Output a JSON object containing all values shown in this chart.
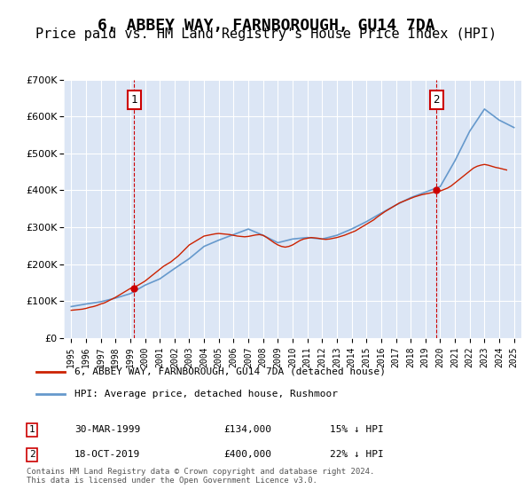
{
  "title": "6, ABBEY WAY, FARNBOROUGH, GU14 7DA",
  "subtitle": "Price paid vs. HM Land Registry's House Price Index (HPI)",
  "ylabel": "",
  "background_color": "#f0f4fa",
  "plot_bg_color": "#dce6f5",
  "title_fontsize": 13,
  "subtitle_fontsize": 11,
  "legend_line1": "6, ABBEY WAY, FARNBOROUGH, GU14 7DA (detached house)",
  "legend_line2": "HPI: Average price, detached house, Rushmoor",
  "footer": "Contains HM Land Registry data © Crown copyright and database right 2024.\nThis data is licensed under the Open Government Licence v3.0.",
  "marker1_label": "1",
  "marker1_date": "30-MAR-1999",
  "marker1_price": "£134,000",
  "marker1_hpi": "15% ↓ HPI",
  "marker2_label": "2",
  "marker2_date": "18-OCT-2019",
  "marker2_price": "£400,000",
  "marker2_hpi": "22% ↓ HPI",
  "hpi_color": "#6699cc",
  "price_color": "#cc2200",
  "marker_color": "#cc0000",
  "vline_color": "#cc0000",
  "years": [
    1995,
    1996,
    1997,
    1998,
    1999,
    2000,
    2001,
    2002,
    2003,
    2004,
    2005,
    2006,
    2007,
    2008,
    2009,
    2010,
    2011,
    2012,
    2013,
    2014,
    2015,
    2016,
    2017,
    2018,
    2019,
    2020,
    2021,
    2022,
    2023,
    2024,
    2025
  ],
  "hpi_values": [
    85000,
    92000,
    98000,
    108000,
    120000,
    143000,
    160000,
    188000,
    215000,
    248000,
    265000,
    280000,
    295000,
    278000,
    258000,
    268000,
    272000,
    268000,
    278000,
    295000,
    315000,
    338000,
    360000,
    380000,
    395000,
    410000,
    480000,
    560000,
    620000,
    590000,
    570000
  ],
  "price_values_x": [
    1995.0,
    1995.25,
    1995.5,
    1995.75,
    1996.0,
    1996.25,
    1996.5,
    1996.75,
    1997.0,
    1997.25,
    1997.5,
    1997.75,
    1998.0,
    1998.25,
    1998.5,
    1998.75,
    1999.0,
    1999.25,
    1999.5,
    1999.75,
    2000.0,
    2000.25,
    2000.5,
    2000.75,
    2001.0,
    2001.25,
    2001.5,
    2001.75,
    2002.0,
    2002.25,
    2002.5,
    2002.75,
    2003.0,
    2003.25,
    2003.5,
    2003.75,
    2004.0,
    2004.25,
    2004.5,
    2004.75,
    2005.0,
    2005.25,
    2005.5,
    2005.75,
    2006.0,
    2006.25,
    2006.5,
    2006.75,
    2007.0,
    2007.25,
    2007.5,
    2007.75,
    2008.0,
    2008.25,
    2008.5,
    2008.75,
    2009.0,
    2009.25,
    2009.5,
    2009.75,
    2010.0,
    2010.25,
    2010.5,
    2010.75,
    2011.0,
    2011.25,
    2011.5,
    2011.75,
    2012.0,
    2012.25,
    2012.5,
    2012.75,
    2013.0,
    2013.25,
    2013.5,
    2013.75,
    2014.0,
    2014.25,
    2014.5,
    2014.75,
    2015.0,
    2015.25,
    2015.5,
    2015.75,
    2016.0,
    2016.25,
    2016.5,
    2016.75,
    2017.0,
    2017.25,
    2017.5,
    2017.75,
    2018.0,
    2018.25,
    2018.5,
    2018.75,
    2019.0,
    2019.25,
    2019.5,
    2019.75,
    2020.0,
    2020.25,
    2020.5,
    2020.75,
    2021.0,
    2021.25,
    2021.5,
    2021.75,
    2022.0,
    2022.25,
    2022.5,
    2022.75,
    2023.0,
    2023.25,
    2023.5,
    2023.75,
    2024.0,
    2024.5
  ],
  "price_values_y": [
    75000,
    76000,
    77000,
    78000,
    80000,
    83000,
    85000,
    88000,
    92000,
    95000,
    100000,
    105000,
    110000,
    116000,
    122000,
    128000,
    134000,
    138000,
    142000,
    148000,
    154000,
    162000,
    170000,
    178000,
    186000,
    194000,
    200000,
    206000,
    214000,
    222000,
    232000,
    242000,
    252000,
    258000,
    264000,
    270000,
    276000,
    278000,
    280000,
    282000,
    283000,
    282000,
    281000,
    280000,
    278000,
    276000,
    275000,
    274000,
    275000,
    277000,
    279000,
    280000,
    278000,
    272000,
    265000,
    258000,
    252000,
    248000,
    246000,
    248000,
    252000,
    258000,
    264000,
    268000,
    270000,
    272000,
    271000,
    270000,
    268000,
    267000,
    268000,
    270000,
    272000,
    275000,
    278000,
    282000,
    286000,
    290000,
    296000,
    302000,
    308000,
    314000,
    320000,
    328000,
    335000,
    342000,
    348000,
    354000,
    360000,
    366000,
    370000,
    374000,
    378000,
    382000,
    385000,
    388000,
    390000,
    392000,
    394000,
    396000,
    398000,
    402000,
    406000,
    412000,
    420000,
    428000,
    436000,
    444000,
    452000,
    460000,
    465000,
    468000,
    470000,
    468000,
    465000,
    462000,
    460000,
    455000
  ]
}
